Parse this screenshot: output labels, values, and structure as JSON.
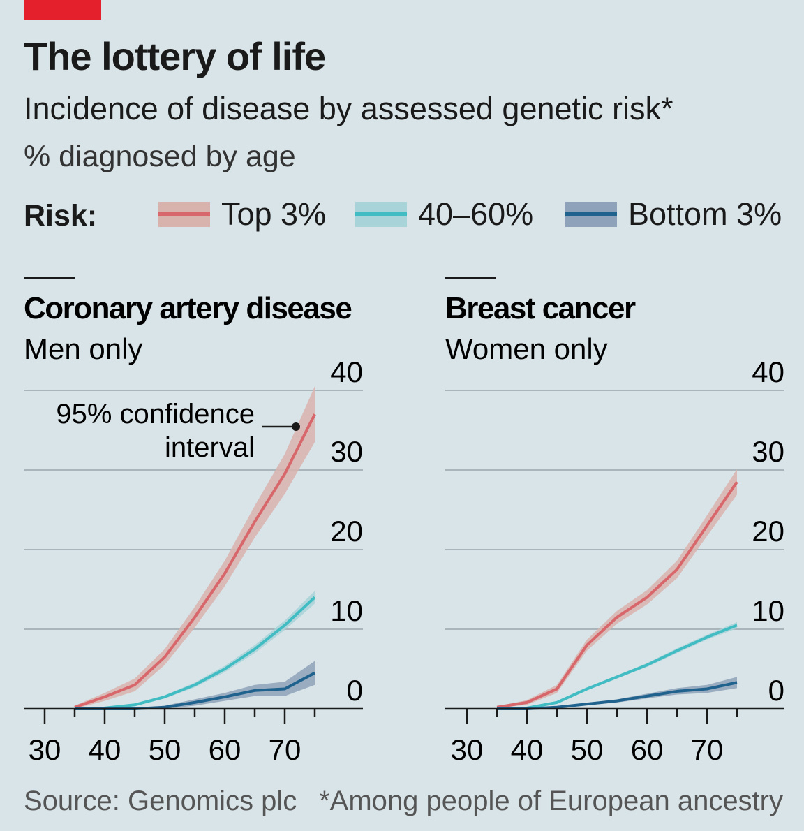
{
  "header": {
    "title": "The lottery of life",
    "subtitle": "Incidence of disease by assessed genetic risk*",
    "unit": "% diagnosed by age"
  },
  "legend": {
    "label": "Risk:",
    "items": [
      {
        "name": "Top 3%",
        "line": "#d7676b",
        "band": "#d8b3ae"
      },
      {
        "name": "40–60%",
        "line": "#41bcc3",
        "band": "#a8d3d9"
      },
      {
        "name": "Bottom 3%",
        "line": "#1f628d",
        "band": "#8ea3b9"
      }
    ]
  },
  "annotation": {
    "line1": "95% confidence",
    "line2": "interval"
  },
  "footer": {
    "source": "Source: Genomics plc",
    "note": "*Among people of European ancestry"
  },
  "chart_data": [
    {
      "type": "line",
      "title": "Coronary artery disease",
      "subtitle": "Men only",
      "ylim": [
        0,
        40
      ],
      "yticks": [
        "0",
        "10",
        "20",
        "30",
        "40"
      ],
      "xlim": [
        30,
        75
      ],
      "xticks": [
        "30",
        "40",
        "50",
        "60",
        "70"
      ],
      "grid": true,
      "x": [
        35,
        40,
        45,
        50,
        55,
        60,
        65,
        70,
        75
      ],
      "series": [
        {
          "name": "Top 3%",
          "values": [
            0.2,
            1.5,
            3,
            6.5,
            11.5,
            17,
            23.5,
            29.5,
            37
          ],
          "ci": [
            0.2,
            0.5,
            0.8,
            1,
            1.3,
            1.6,
            2,
            2.5,
            3.5
          ]
        },
        {
          "name": "40–60%",
          "values": [
            0,
            0.1,
            0.5,
            1.5,
            3,
            5,
            7.5,
            10.5,
            14
          ],
          "ci": [
            0,
            0.05,
            0.1,
            0.2,
            0.3,
            0.4,
            0.5,
            0.6,
            0.8
          ]
        },
        {
          "name": "Bottom 3%",
          "values": [
            0,
            0,
            0,
            0.2,
            0.8,
            1.5,
            2.3,
            2.5,
            4.5
          ],
          "ci": [
            0,
            0,
            0,
            0.2,
            0.4,
            0.5,
            0.7,
            0.9,
            1.5
          ]
        }
      ]
    },
    {
      "type": "line",
      "title": "Breast cancer",
      "subtitle": "Women only",
      "ylim": [
        0,
        40
      ],
      "yticks": [
        "0",
        "10",
        "20",
        "30",
        "40"
      ],
      "xlim": [
        30,
        75
      ],
      "xticks": [
        "30",
        "40",
        "50",
        "60",
        "70"
      ],
      "grid": true,
      "x": [
        35,
        40,
        45,
        50,
        55,
        60,
        65,
        70,
        75
      ],
      "series": [
        {
          "name": "Top 3%",
          "values": [
            0.2,
            0.8,
            2.5,
            8,
            11.5,
            14,
            17.5,
            23,
            28.5
          ],
          "ci": [
            0.1,
            0.3,
            0.5,
            0.7,
            0.8,
            0.9,
            1.1,
            1.3,
            1.6
          ]
        },
        {
          "name": "40–60%",
          "values": [
            0,
            0.1,
            0.8,
            2.5,
            4,
            5.5,
            7.3,
            9,
            10.5
          ],
          "ci": [
            0,
            0.05,
            0.1,
            0.15,
            0.2,
            0.25,
            0.3,
            0.3,
            0.4
          ]
        },
        {
          "name": "Bottom 3%",
          "values": [
            0,
            0,
            0.2,
            0.6,
            1,
            1.6,
            2.2,
            2.5,
            3.3
          ],
          "ci": [
            0,
            0,
            0.1,
            0.15,
            0.2,
            0.3,
            0.4,
            0.5,
            0.7
          ]
        }
      ]
    }
  ]
}
